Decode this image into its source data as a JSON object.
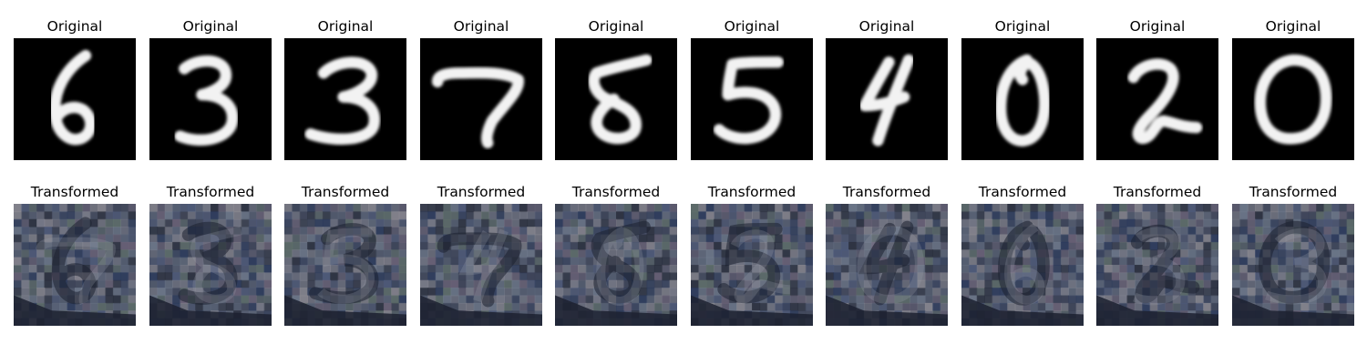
{
  "rows": [
    {
      "title": "Original",
      "panels": [
        {
          "digit": "6"
        },
        {
          "digit": "3"
        },
        {
          "digit": "3"
        },
        {
          "digit": "7"
        },
        {
          "digit": "8"
        },
        {
          "digit": "5"
        },
        {
          "digit": "4"
        },
        {
          "digit": "0"
        },
        {
          "digit": "2"
        },
        {
          "digit": "0"
        }
      ]
    },
    {
      "title": "Transformed",
      "panels": [
        {
          "digit": "6"
        },
        {
          "digit": "3"
        },
        {
          "digit": "3"
        },
        {
          "digit": "7"
        },
        {
          "digit": "8"
        },
        {
          "digit": "5"
        },
        {
          "digit": "4"
        },
        {
          "digit": "0"
        },
        {
          "digit": "2"
        },
        {
          "digit": "0"
        }
      ]
    }
  ],
  "colors": {
    "original_background": "#000000",
    "original_stroke": "#f2f2f2",
    "transformed_base": "#4a5163",
    "transformed_dark": "#1c2130",
    "transformed_light": "#9aa0ad"
  }
}
